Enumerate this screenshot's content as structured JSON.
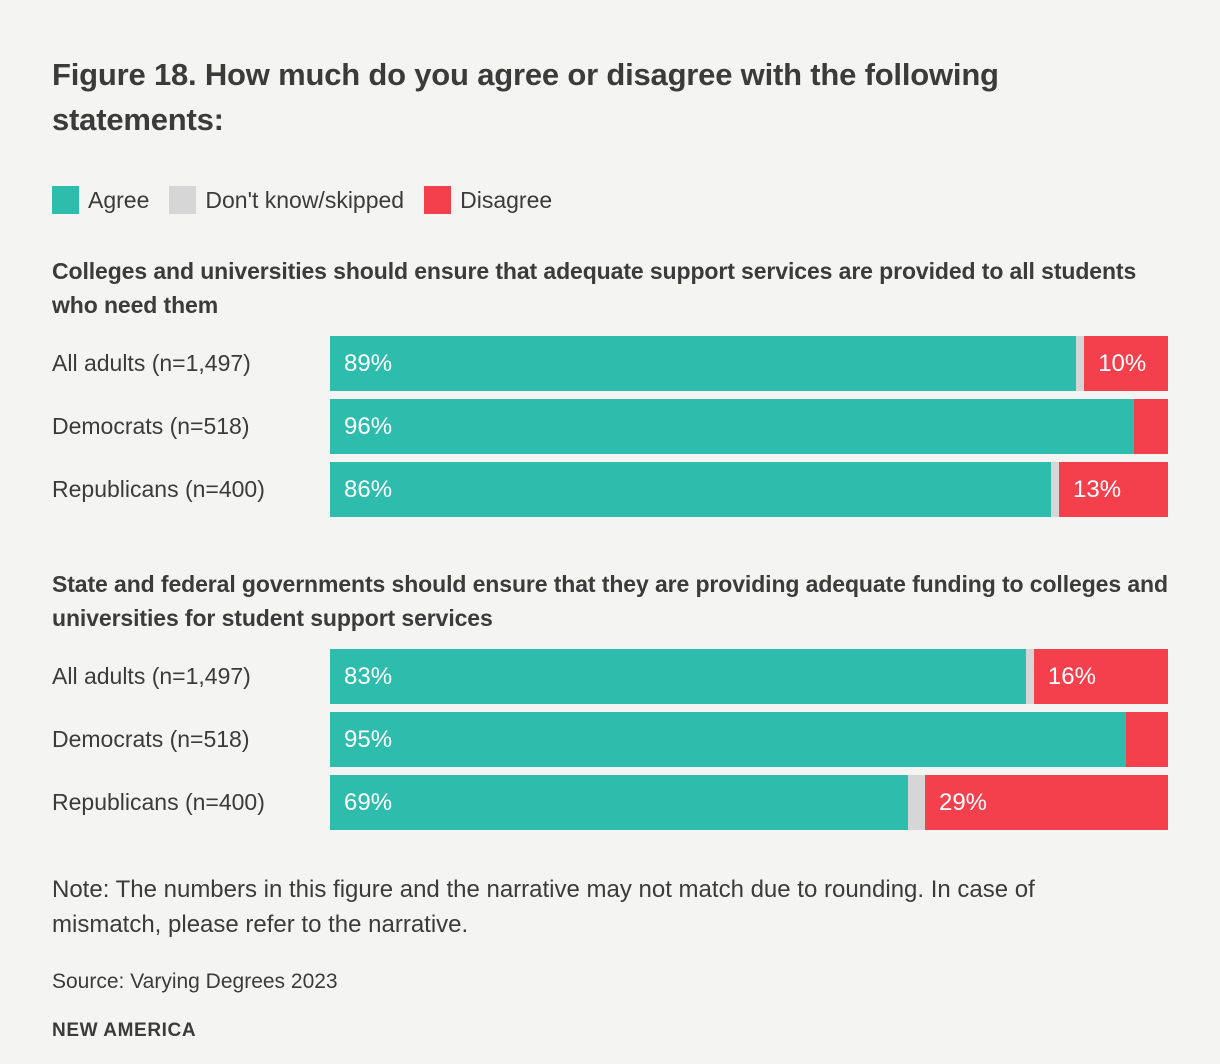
{
  "page": {
    "background": "#f4f4f3",
    "text_color": "#3b3b3b"
  },
  "title": "Figure 18. How much do you agree or disagree with the following statements:",
  "legend": {
    "items": [
      {
        "label": "Agree",
        "color": "#2ebcad"
      },
      {
        "label": "Don't know/skipped",
        "color": "#d6d6d6"
      },
      {
        "label": "Disagree",
        "color": "#f4404c"
      }
    ]
  },
  "chart_data": [
    {
      "type": "bar",
      "stacked": true,
      "orientation": "horizontal",
      "title": "Colleges and universities should ensure that adequate support services are provided to all students who need them",
      "categories": [
        "All adults (n=1,497)",
        "Democrats (n=518)",
        "Republicans (n=400)"
      ],
      "xlim": [
        0,
        100
      ],
      "legend_position": "top",
      "grid": false,
      "series": [
        {
          "name": "Agree",
          "color": "#2ebcad",
          "values": [
            89,
            96,
            86
          ],
          "labels": [
            "89%",
            "96%",
            "86%"
          ]
        },
        {
          "name": "Don't know/skipped",
          "color": "#d6d6d6",
          "values": [
            1,
            0,
            1
          ],
          "labels": [
            "",
            "",
            ""
          ]
        },
        {
          "name": "Disagree",
          "color": "#f4404c",
          "values": [
            10,
            4,
            13
          ],
          "labels": [
            "10%",
            "",
            "13%"
          ]
        }
      ]
    },
    {
      "type": "bar",
      "stacked": true,
      "orientation": "horizontal",
      "title": "State and federal governments should ensure that they are providing adequate funding to colleges and universities for student support services",
      "categories": [
        "All adults (n=1,497)",
        "Democrats (n=518)",
        "Republicans (n=400)"
      ],
      "xlim": [
        0,
        100
      ],
      "legend_position": "top",
      "grid": false,
      "series": [
        {
          "name": "Agree",
          "color": "#2ebcad",
          "values": [
            83,
            95,
            69
          ],
          "labels": [
            "83%",
            "95%",
            "69%"
          ]
        },
        {
          "name": "Don't know/skipped",
          "color": "#d6d6d6",
          "values": [
            1,
            0,
            2
          ],
          "labels": [
            "",
            "",
            ""
          ]
        },
        {
          "name": "Disagree",
          "color": "#f4404c",
          "values": [
            16,
            5,
            29
          ],
          "labels": [
            "16%",
            "",
            "29%"
          ]
        }
      ]
    }
  ],
  "note": "Note: The numbers in this figure and the narrative may not match due to rounding. In case of mismatch, please refer to the narrative.",
  "source": "Source: Varying Degrees 2023",
  "brand": "NEW AMERICA"
}
